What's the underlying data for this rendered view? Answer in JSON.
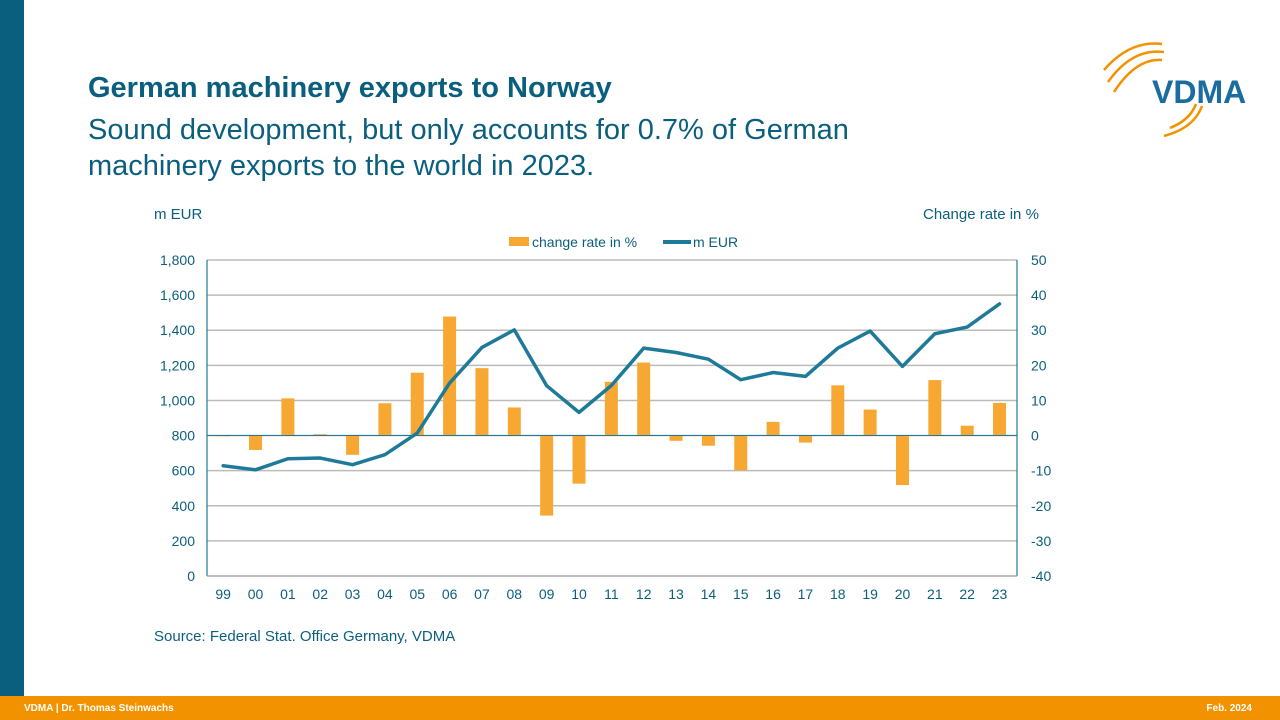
{
  "title": "German machinery exports to Norway",
  "subtitle": "Sound development,  but only accounts for 0.7% of German machinery exports to the world in 2023.",
  "logo_text": "VDMA",
  "footer": {
    "left": "VDMA | Dr. Thomas Steinwachs",
    "right": "Feb. 2024"
  },
  "source": "Source: Federal Stat. Office Germany, VDMA",
  "colors": {
    "brand": "#0b5f7e",
    "accent": "#f39200",
    "bar": "#f7a833",
    "line": "#1f7a99"
  },
  "chart_data": {
    "type": "bar+line",
    "categories": [
      "99",
      "00",
      "01",
      "02",
      "03",
      "04",
      "05",
      "06",
      "07",
      "08",
      "09",
      "10",
      "11",
      "12",
      "13",
      "14",
      "15",
      "16",
      "17",
      "18",
      "19",
      "20",
      "21",
      "22",
      "23"
    ],
    "left_axis": {
      "label": "m EUR",
      "range": [
        0,
        1800
      ],
      "ticks": [
        "0",
        "200",
        "400",
        "600",
        "800",
        "1,000",
        "1,200",
        "1,400",
        "1,600",
        "1,800"
      ]
    },
    "right_axis": {
      "label": "Change rate in %",
      "range": [
        -40,
        50
      ],
      "ticks": [
        "-40",
        "-30",
        "-20",
        "-10",
        "0",
        "10",
        "20",
        "30",
        "40",
        "50"
      ]
    },
    "legend": {
      "position": "top",
      "entries": [
        "change rate in %",
        "m EUR"
      ]
    },
    "grid": true,
    "series": [
      {
        "name": "change rate in %",
        "type": "bar",
        "axis": "right",
        "values": [
          0,
          -4.1,
          10.6,
          0.4,
          -5.5,
          9.2,
          17.9,
          33.9,
          19.2,
          8.0,
          -22.8,
          -13.7,
          15.3,
          20.8,
          -1.5,
          -2.9,
          -9.9,
          3.9,
          -2.0,
          14.3,
          7.4,
          -14.1,
          15.8,
          2.8,
          9.3
        ]
      },
      {
        "name": "m EUR",
        "type": "line",
        "axis": "left",
        "values": [
          628,
          605,
          668,
          672,
          634,
          691,
          814,
          1099,
          1302,
          1402,
          1084,
          932,
          1085,
          1298,
          1273,
          1235,
          1118,
          1159,
          1137,
          1298,
          1395,
          1194,
          1380,
          1418,
          1550
        ]
      }
    ]
  }
}
